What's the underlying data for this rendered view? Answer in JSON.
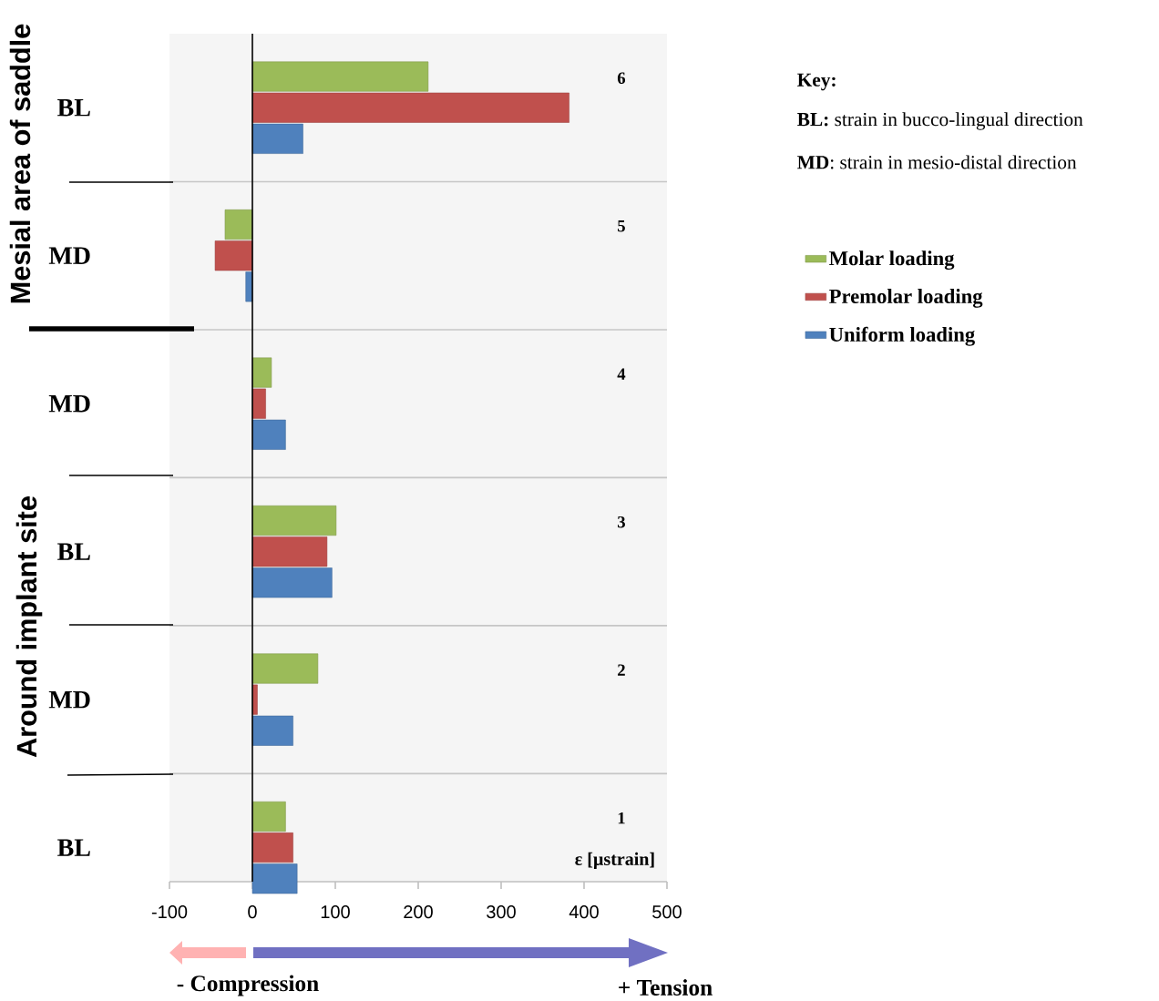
{
  "chart_data": {
    "type": "bar",
    "orientation": "horizontal",
    "xlabel": "ε [µstrain]",
    "categories": [
      "BL",
      "MD",
      "MD",
      "BL",
      "MD",
      "BL"
    ],
    "series": [
      {
        "name": "Molar loading",
        "color": "#9bbb59",
        "values": [
          212,
          -33,
          23,
          101,
          79,
          40
        ]
      },
      {
        "name": "Premolar loading",
        "color": "#c0504d",
        "values": [
          382,
          -45,
          16,
          90,
          6,
          49
        ]
      },
      {
        "name": "Uniform loading",
        "color": "#4f81bd",
        "values": [
          61,
          -8,
          40,
          96,
          49,
          54
        ]
      }
    ],
    "xlim": [
      -100,
      500
    ],
    "xticks": [
      -100,
      0,
      100,
      200,
      300,
      400,
      500
    ],
    "grid": "y",
    "legend": "right",
    "annotations": [
      "6",
      "5",
      "4",
      "3",
      "2",
      "1",
      "Mesial area of saddle",
      "Around implant site",
      "Key:",
      "**BL:** strain in bucco-lingual direction",
      "**MD**: strain in mesio-distal direction",
      "- Compression",
      "+ Tension"
    ]
  }
}
